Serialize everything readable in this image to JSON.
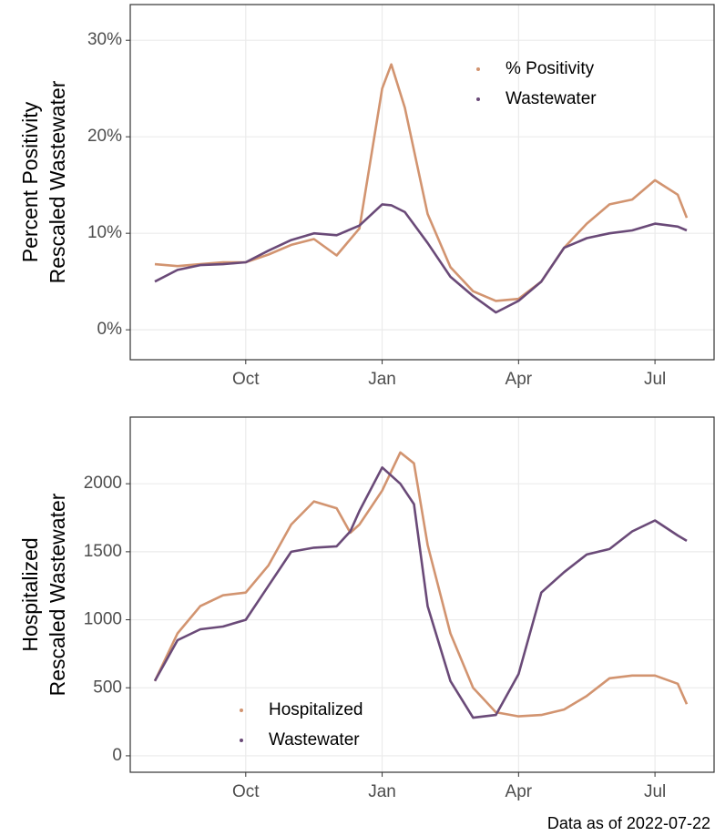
{
  "chart_data": [
    {
      "type": "line",
      "ylabel": [
        "Percent Positivity",
        "Rescaled Wastewater"
      ],
      "xlim": [
        7.46,
        20.3
      ],
      "ylim": [
        -3.1,
        33.7
      ],
      "xticks": [
        {
          "value": 10,
          "label": "Oct"
        },
        {
          "value": 13,
          "label": "Jan"
        },
        {
          "value": 16,
          "label": "Apr"
        },
        {
          "value": 19,
          "label": "Jul"
        }
      ],
      "yticks": [
        {
          "value": 0,
          "label": "0%"
        },
        {
          "value": 10,
          "label": "10%"
        },
        {
          "value": 20,
          "label": "20%"
        },
        {
          "value": 30,
          "label": "30%"
        }
      ],
      "grid": true,
      "legend": "upper-right",
      "x": [
        8,
        8.5,
        9,
        9.5,
        10,
        10.5,
        11,
        11.5,
        12,
        12.5,
        13,
        13.2,
        13.5,
        14,
        14.5,
        15,
        15.5,
        16,
        16.5,
        17,
        17.5,
        18,
        18.5,
        19,
        19.5,
        19.7
      ],
      "series": [
        {
          "name": "% Positivity",
          "color": "#d29470",
          "values": [
            6.8,
            6.6,
            6.8,
            7.0,
            7.0,
            7.8,
            8.8,
            9.4,
            7.7,
            10.5,
            25,
            27.5,
            23,
            12,
            6.5,
            4,
            3,
            3.2,
            5,
            8.5,
            11,
            13,
            13.5,
            15.5,
            14,
            11.6
          ]
        },
        {
          "name": "Wastewater",
          "color": "#6a4a78",
          "values": [
            5,
            6.2,
            6.7,
            6.8,
            7.0,
            8.2,
            9.3,
            10,
            9.8,
            10.8,
            13,
            12.9,
            12.2,
            9,
            5.5,
            3.5,
            1.8,
            3,
            5,
            8.5,
            9.5,
            10,
            10.3,
            11,
            10.7,
            10.3
          ]
        }
      ]
    },
    {
      "type": "line",
      "ylabel": [
        "Hospitalized",
        "Rescaled Wastewater"
      ],
      "xlim": [
        7.46,
        20.3
      ],
      "ylim": [
        -121,
        2490
      ],
      "xticks": [
        {
          "value": 10,
          "label": "Oct"
        },
        {
          "value": 13,
          "label": "Jan"
        },
        {
          "value": 16,
          "label": "Apr"
        },
        {
          "value": 19,
          "label": "Jul"
        }
      ],
      "yticks": [
        0,
        500,
        1000,
        1500,
        2000
      ],
      "grid": true,
      "legend": "lower-left",
      "x": [
        8,
        8.5,
        9,
        9.5,
        10,
        10.5,
        11,
        11.5,
        12,
        12.3,
        12.5,
        13,
        13.4,
        13.7,
        14,
        14.5,
        15,
        15.5,
        16,
        16.5,
        17,
        17.5,
        18,
        18.5,
        19,
        19.5,
        19.7
      ],
      "series": [
        {
          "name": "Hospitalized",
          "color": "#d29470",
          "values": [
            550,
            900,
            1100,
            1180,
            1200,
            1400,
            1700,
            1870,
            1820,
            1640,
            1700,
            1950,
            2230,
            2150,
            1550,
            900,
            500,
            320,
            290,
            300,
            340,
            440,
            570,
            590,
            590,
            530,
            380
          ]
        },
        {
          "name": "Wastewater",
          "color": "#6a4a78",
          "values": [
            550,
            850,
            930,
            950,
            1000,
            1250,
            1500,
            1530,
            1540,
            1650,
            1800,
            2120,
            2000,
            1850,
            1100,
            550,
            280,
            300,
            600,
            1200,
            1350,
            1480,
            1520,
            1650,
            1730,
            1620,
            1580
          ]
        }
      ]
    }
  ],
  "caption": "Data as of 2022-07-22"
}
